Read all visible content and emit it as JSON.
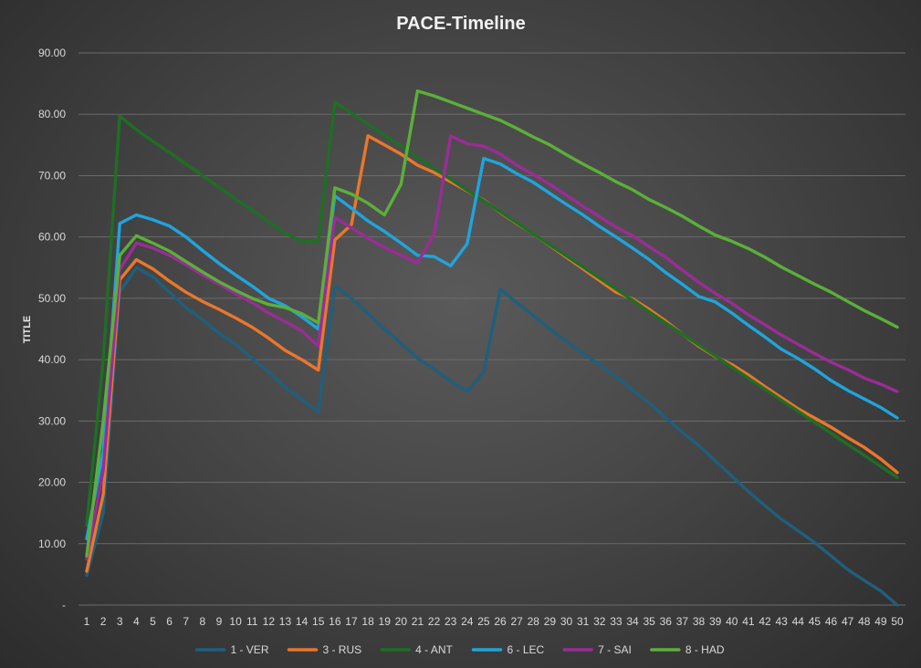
{
  "chart_data": {
    "type": "line",
    "title": "PACE-Timeline",
    "xlabel": "",
    "ylabel": "TITLE",
    "ylim": [
      0,
      90
    ],
    "yticks": [
      "-",
      "10.00",
      "20.00",
      "30.00",
      "40.00",
      "50.00",
      "60.00",
      "70.00",
      "80.00",
      "90.00"
    ],
    "grid": true,
    "legend_position": "bottom",
    "x": [
      1,
      2,
      3,
      4,
      5,
      6,
      7,
      8,
      9,
      10,
      11,
      12,
      13,
      14,
      15,
      16,
      17,
      18,
      19,
      20,
      21,
      22,
      23,
      24,
      25,
      26,
      27,
      28,
      29,
      30,
      31,
      32,
      33,
      34,
      35,
      36,
      37,
      38,
      39,
      40,
      41,
      42,
      43,
      44,
      45,
      46,
      47,
      48,
      49,
      50
    ],
    "series": [
      {
        "name": "1 - VER",
        "color": "#1f5f7d",
        "values": [
          4.8,
          15,
          51,
          55,
          53.5,
          51,
          48.5,
          46.5,
          44.3,
          42.5,
          40.2,
          38,
          35.5,
          33.5,
          31.5,
          52,
          50,
          47.5,
          45,
          42.7,
          40.2,
          38.5,
          36.5,
          34.8,
          38,
          51.5,
          49.3,
          47.2,
          45,
          43,
          41,
          39.2,
          37.2,
          35,
          33,
          30.5,
          28.2,
          26,
          23.5,
          21,
          18.5,
          16.2,
          14,
          12.1,
          10.2,
          8,
          5.8,
          4,
          2.3,
          0
        ]
      },
      {
        "name": "3 - RUS",
        "color": "#e9772c",
        "values": [
          5.5,
          18,
          53,
          56.3,
          54.8,
          52.8,
          51,
          49.5,
          48.2,
          46.8,
          45.3,
          43.5,
          41.5,
          40,
          38.3,
          59.5,
          62,
          76.5,
          75,
          73.5,
          71.7,
          70.5,
          69,
          67.5,
          66,
          64,
          62.2,
          60.5,
          58.6,
          56.7,
          54.8,
          52.9,
          51,
          49.9,
          48.2,
          46.3,
          44.2,
          42.2,
          40.5,
          39.2,
          37.5,
          35.6,
          33.8,
          32,
          30.5,
          29,
          27.3,
          25.7,
          23.8,
          21.6
        ]
      },
      {
        "name": "4 - ANT",
        "color": "#1e6f24",
        "values": [
          13,
          40,
          79.7,
          77.5,
          75.6,
          73.8,
          71.9,
          70,
          68.1,
          66.2,
          64.4,
          62.5,
          60.6,
          59.3,
          59.3,
          82,
          80.2,
          78.4,
          76.6,
          74.8,
          73,
          71.2,
          69.4,
          67.6,
          65.9,
          64.1,
          62.3,
          60.5,
          58.7,
          56.9,
          55.1,
          53.3,
          51.5,
          49.7,
          47.8,
          46,
          44.2,
          42.4,
          40.6,
          38.8,
          37,
          35.2,
          33.4,
          31.6,
          29.8,
          28,
          26.2,
          24.4,
          22.6,
          20.8
        ]
      },
      {
        "name": "6 - LEC",
        "color": "#20a4dd",
        "values": [
          10.8,
          25,
          62.2,
          63.6,
          62.8,
          61.8,
          60,
          57.8,
          55.7,
          53.8,
          52,
          50,
          48.8,
          47,
          45,
          66.7,
          64.7,
          62.6,
          60.9,
          59,
          57,
          56.8,
          55.3,
          58.9,
          72.8,
          71.9,
          70.3,
          68.9,
          67.1,
          65.3,
          63.6,
          61.7,
          60,
          58.2,
          56.3,
          54.2,
          52.3,
          50.3,
          49.4,
          47.6,
          45.6,
          43.7,
          41.7,
          40.2,
          38.5,
          36.6,
          35,
          33.6,
          32.2,
          30.5
        ]
      },
      {
        "name": "7 - SAI",
        "color": "#9a2d96",
        "values": [
          7.5,
          22,
          54.7,
          59,
          58.2,
          57,
          55.5,
          53.8,
          52.3,
          50.8,
          49.3,
          47.6,
          46.2,
          44.7,
          42.2,
          63.2,
          61.5,
          59.8,
          58.3,
          57,
          55.8,
          60.5,
          76.5,
          75.2,
          74.8,
          73.5,
          71.7,
          70.2,
          68.6,
          66.8,
          65,
          63.3,
          61.6,
          60.2,
          58.4,
          56.7,
          54.6,
          52.6,
          50.8,
          49.2,
          47.3,
          45.7,
          44,
          42.5,
          41,
          39.6,
          38.4,
          37,
          36,
          34.8
        ]
      },
      {
        "name": "8 - HAD",
        "color": "#5bb038",
        "values": [
          8,
          30,
          57,
          60.2,
          59,
          57.7,
          56,
          54.3,
          52.7,
          51.3,
          50,
          49,
          48.5,
          47.5,
          46,
          68,
          67,
          65.5,
          63.6,
          68.6,
          83.8,
          83,
          82,
          81,
          80,
          79,
          77.7,
          76.3,
          75,
          73.4,
          71.9,
          70.5,
          69,
          67.7,
          66.1,
          64.8,
          63.4,
          61.8,
          60.3,
          59.3,
          58.1,
          56.7,
          55.1,
          53.7,
          52.3,
          51,
          49.5,
          48,
          46.7,
          45.3
        ]
      }
    ]
  }
}
